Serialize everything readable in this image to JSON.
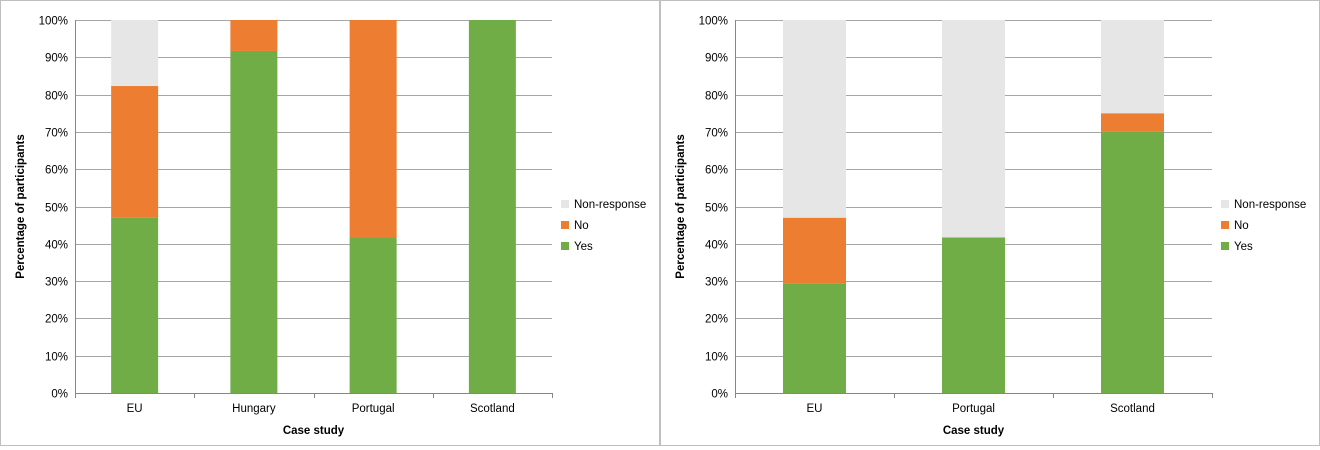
{
  "chart_data": [
    {
      "type": "bar",
      "stacked": true,
      "categories": [
        "EU",
        "Hungary",
        "Portugal",
        "Scotland"
      ],
      "series": [
        {
          "name": "Yes",
          "color": "#70ad47",
          "values": [
            47,
            91.7,
            41.7,
            100
          ]
        },
        {
          "name": "No",
          "color": "#ed7d31",
          "values": [
            35.3,
            8.3,
            58.3,
            0
          ]
        },
        {
          "name": "Non-response",
          "color": "#e7e6e6",
          "values": [
            17.7,
            0,
            0,
            0
          ]
        }
      ],
      "xlabel": "Case study",
      "ylabel": "Percentage of participants",
      "ylim": [
        0,
        100
      ],
      "yticks": [
        "0%",
        "10%",
        "20%",
        "30%",
        "40%",
        "50%",
        "60%",
        "70%",
        "80%",
        "90%",
        "100%"
      ],
      "legend": [
        "Non-response",
        "No",
        "Yes"
      ],
      "legend_position": "right",
      "grid": true
    },
    {
      "type": "bar",
      "stacked": true,
      "categories": [
        "EU",
        "Portugal",
        "Scotland"
      ],
      "series": [
        {
          "name": "Yes",
          "color": "#70ad47",
          "values": [
            29.4,
            41.7,
            70
          ]
        },
        {
          "name": "No",
          "color": "#ed7d31",
          "values": [
            17.6,
            0,
            5
          ]
        },
        {
          "name": "Non-response",
          "color": "#e7e6e6",
          "values": [
            53,
            58.3,
            25
          ]
        }
      ],
      "xlabel": "Case study",
      "ylabel": "Percentage of participants",
      "ylim": [
        0,
        100
      ],
      "yticks": [
        "0%",
        "10%",
        "20%",
        "30%",
        "40%",
        "50%",
        "60%",
        "70%",
        "80%",
        "90%",
        "100%"
      ],
      "legend": [
        "Non-response",
        "No",
        "Yes"
      ],
      "legend_position": "right",
      "grid": true
    }
  ]
}
